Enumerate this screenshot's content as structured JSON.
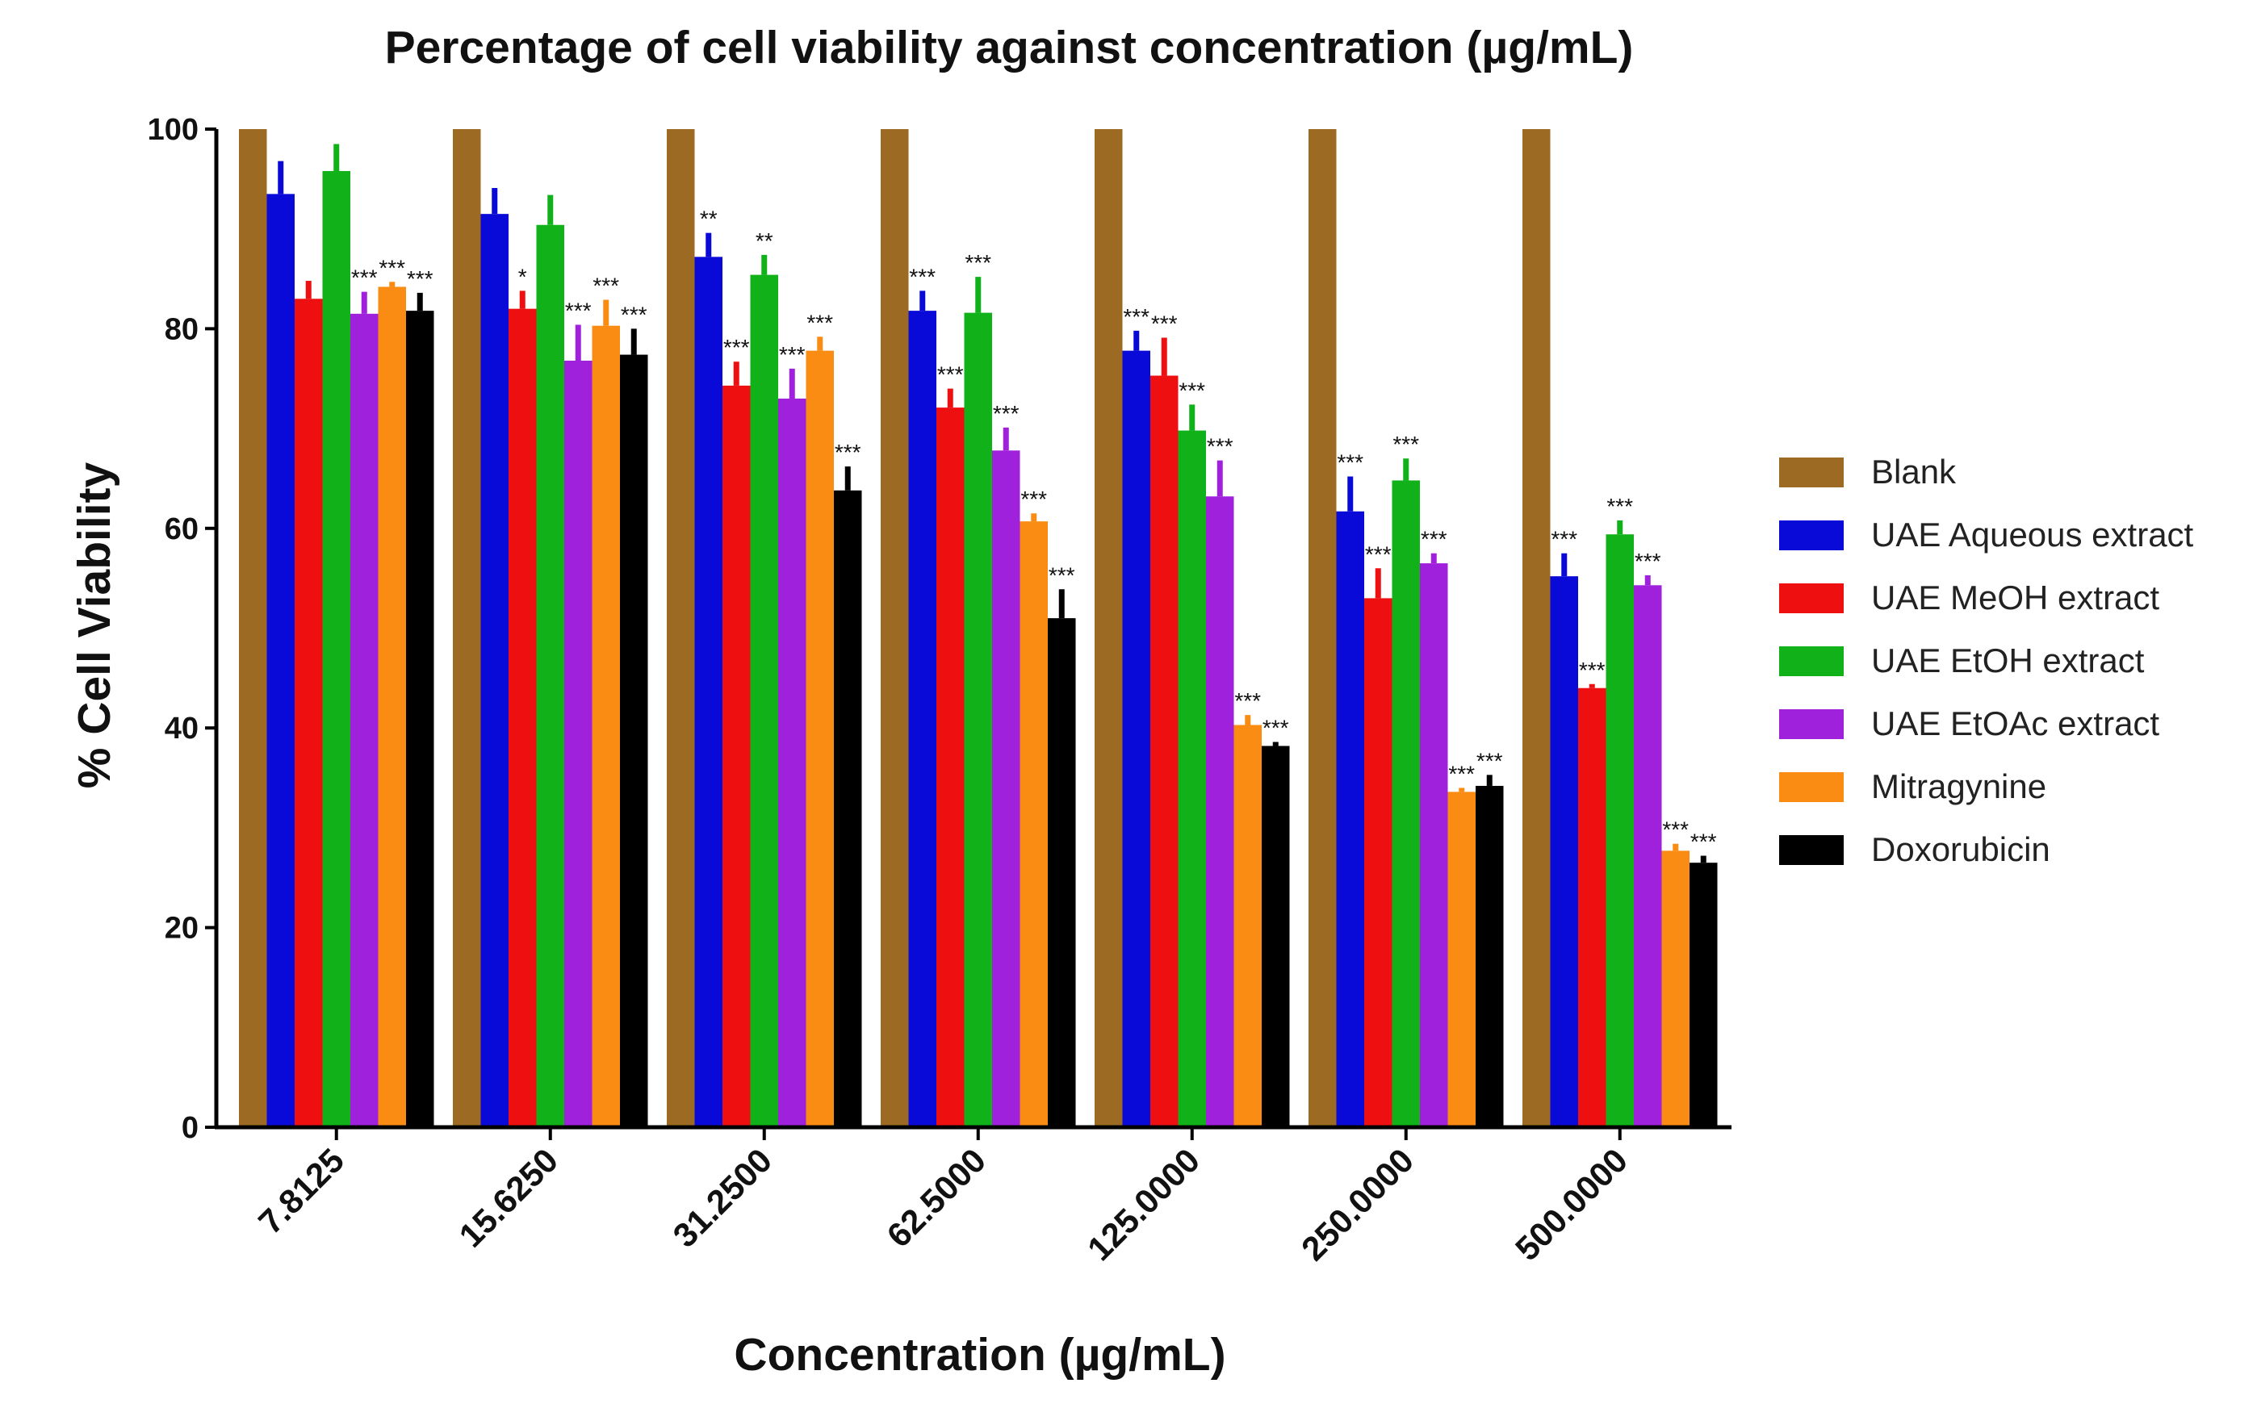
{
  "chart_data": {
    "type": "bar",
    "title": "Percentage of cell viability against concentration (µg/mL)",
    "xlabel": "Concentration (µg/mL)",
    "ylabel": "% Cell Viability",
    "ylim": [
      0,
      100
    ],
    "yticks": [
      "0",
      "20",
      "40",
      "60",
      "80",
      "100"
    ],
    "categories": [
      "7.8125",
      "15.6250",
      "31.2500",
      "62.5000",
      "125.0000",
      "250.0000",
      "500.0000"
    ],
    "legend_position": "right",
    "series": [
      {
        "name": "Blank",
        "color": "#9c6a22",
        "values": [
          100,
          100,
          100,
          100,
          100,
          100,
          100
        ],
        "errors": [
          0,
          0,
          0,
          0,
          0,
          0,
          0
        ],
        "significance": [
          "",
          "",
          "",
          "",
          "",
          "",
          ""
        ]
      },
      {
        "name": "UAE Aqueous extract",
        "color": "#0a0ad8",
        "values": [
          93.5,
          91.5,
          87.2,
          81.8,
          77.8,
          61.7,
          55.2
        ],
        "errors": [
          3.3,
          2.6,
          2.4,
          2.0,
          2.0,
          3.5,
          2.3
        ],
        "significance": [
          "",
          "",
          "**",
          "***",
          "***",
          "***",
          "***"
        ]
      },
      {
        "name": "UAE MeOH extract",
        "color": "#ee1010",
        "values": [
          83.0,
          82.0,
          74.3,
          72.1,
          75.3,
          53.0,
          44.0
        ],
        "errors": [
          1.8,
          1.8,
          2.4,
          1.9,
          3.8,
          3.0,
          0.4
        ],
        "significance": [
          "",
          "*",
          "***",
          "***",
          "***",
          "***",
          "***"
        ]
      },
      {
        "name": "UAE EtOH extract",
        "color": "#11b11a",
        "values": [
          95.8,
          90.4,
          85.4,
          81.6,
          69.8,
          64.8,
          59.4
        ],
        "errors": [
          2.7,
          3.0,
          2.0,
          3.6,
          2.6,
          2.2,
          1.4
        ],
        "significance": [
          "",
          "",
          "**",
          "***",
          "***",
          "***",
          "***"
        ]
      },
      {
        "name": "UAE EtOAc extract",
        "color": "#a021dc",
        "values": [
          81.5,
          76.8,
          73.0,
          67.8,
          63.2,
          56.5,
          54.3
        ],
        "errors": [
          2.2,
          3.6,
          3.0,
          2.3,
          3.6,
          1.0,
          1.0
        ],
        "significance": [
          "***",
          "***",
          "***",
          "***",
          "***",
          "***",
          "***"
        ]
      },
      {
        "name": "Mitragynine",
        "color": "#fb8c13",
        "values": [
          84.2,
          80.3,
          77.8,
          60.7,
          40.3,
          33.6,
          27.7
        ],
        "errors": [
          0.5,
          2.6,
          1.4,
          0.8,
          1.0,
          0.4,
          0.7
        ],
        "significance": [
          "***",
          "***",
          "***",
          "***",
          "***",
          "***",
          "***"
        ]
      },
      {
        "name": "Doxorubicin",
        "color": "#000000",
        "values": [
          81.8,
          77.4,
          63.8,
          51.0,
          38.2,
          34.2,
          26.5
        ],
        "errors": [
          1.8,
          2.6,
          2.4,
          2.9,
          0.4,
          1.1,
          0.7
        ],
        "significance": [
          "***",
          "***",
          "***",
          "***",
          "***",
          "***",
          "***"
        ]
      }
    ]
  }
}
